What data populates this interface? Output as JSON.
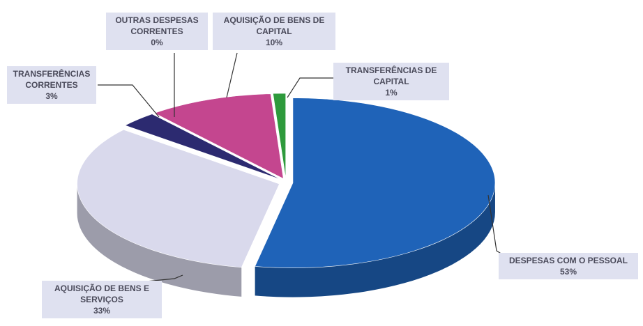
{
  "chart_data": {
    "type": "pie",
    "categories": [
      "DESPESAS COM O PESSOAL",
      "AQUISIÇÃO DE BENS E SERVIÇOS",
      "TRANSFERÊNCIAS CORRENTES",
      "OUTRAS DESPESAS CORRENTES",
      "AQUISIÇÃO DE BENS DE CAPITAL",
      "TRANSFERÊNCIAS DE CAPITAL"
    ],
    "values": [
      53,
      33,
      3,
      0,
      10,
      1
    ],
    "value_labels": [
      "53%",
      "33%",
      "3%",
      "0%",
      "10%",
      "1%"
    ],
    "colors": [
      "#1f63b8",
      "#d9d9ec",
      "#2c2a70",
      "#8a8a96",
      "#c4468f",
      "#2e9a3c"
    ]
  }
}
